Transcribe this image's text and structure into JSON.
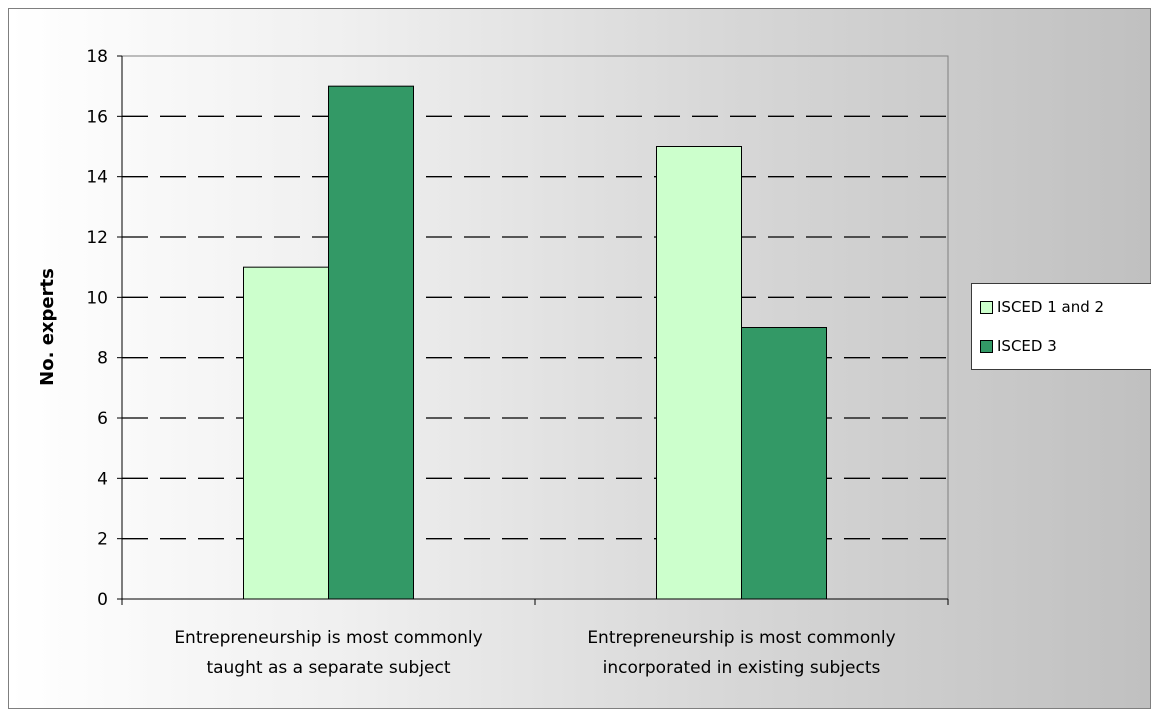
{
  "chart_data": {
    "type": "bar",
    "categories": [
      [
        "Entrepreneurship is most commonly",
        "taught as a separate subject"
      ],
      [
        "Entrepreneurship is most commonly",
        "incorporated in existing subjects"
      ]
    ],
    "series": [
      {
        "name": "ISCED 1 and 2",
        "values": [
          11,
          15
        ],
        "color": "#ccffcc"
      },
      {
        "name": "ISCED 3",
        "values": [
          17,
          9
        ],
        "color": "#339966"
      }
    ],
    "xlabel": "",
    "ylabel": "No. experts",
    "ylim": [
      0,
      18
    ],
    "yticks": [
      0,
      2,
      4,
      6,
      8,
      10,
      12,
      14,
      16,
      18
    ],
    "grid": "dashed horizontal",
    "legend_position": "right"
  }
}
